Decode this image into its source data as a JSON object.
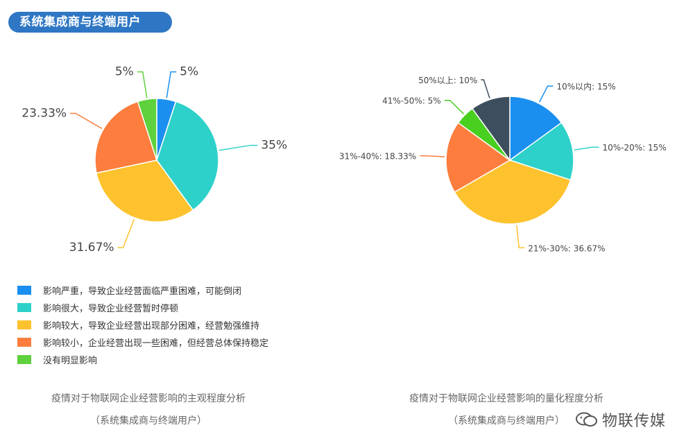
{
  "header": {
    "title": "系统集成商与终端用户"
  },
  "chart_data": [
    {
      "type": "pie",
      "title": "疫情对于物联网企业经营影响的主观程度分析",
      "subtitle": "（系统集成商与终端用户）",
      "slices": [
        {
          "label": "影响严重，导致企业经营面临严重困难，可能倒闭",
          "value": 5,
          "value_label": "5%",
          "color": "#1a8fef"
        },
        {
          "label": "影响很大，导致企业经营暂时停顿",
          "value": 35,
          "value_label": "35%",
          "color": "#2ed1c9"
        },
        {
          "label": "影响较大，导致企业经营出现部分困难，经营勉强维持",
          "value": 31.67,
          "value_label": "31.67%",
          "color": "#fdc22e"
        },
        {
          "label": "影响较小，企业经营出现一些困难，但经营总体保持稳定",
          "value": 23.33,
          "value_label": "23.33%",
          "color": "#fc7d3d"
        },
        {
          "label": "没有明显影响",
          "value": 5,
          "value_label": "5%",
          "color": "#5ed13c"
        }
      ]
    },
    {
      "type": "pie",
      "title": "疫情对于物联网企业经营影响的量化程度分析",
      "subtitle": "（系统集成商与终端用户）",
      "slices": [
        {
          "label": "10%以内",
          "value": 15,
          "value_label": "10%以内: 15%",
          "color": "#1a8fef"
        },
        {
          "label": "10%-20%",
          "value": 15,
          "value_label": "10%-20%: 15%",
          "color": "#2ed1c9"
        },
        {
          "label": "21%-30%",
          "value": 36.67,
          "value_label": "21%-30%: 36.67%",
          "color": "#fdc22e"
        },
        {
          "label": "31%-40%",
          "value": 18.33,
          "value_label": "31%-40%: 18.33%",
          "color": "#fc7d3d"
        },
        {
          "label": "41%-50%",
          "value": 5,
          "value_label": "41%-50%: 5%",
          "color": "#48cf20"
        },
        {
          "label": "50%以上",
          "value": 10,
          "value_label": "50%以上: 10%",
          "color": "#3d4f5e"
        }
      ]
    }
  ],
  "watermark": {
    "text": "物联传媒"
  }
}
